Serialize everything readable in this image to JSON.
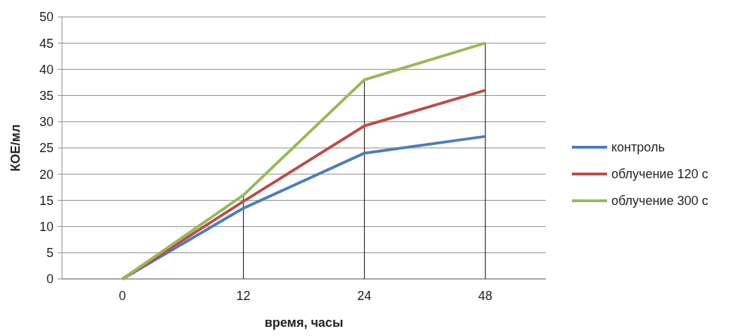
{
  "chart_data": {
    "type": "line",
    "xlabel": "время, часы",
    "ylabel": "КОЕ/мл",
    "categories": [
      "0",
      "12",
      "24",
      "48"
    ],
    "series": [
      {
        "name": "контроль",
        "color": "#4a7ebb",
        "values": [
          0,
          13.5,
          24,
          27.2
        ]
      },
      {
        "name": "облучение 120 с",
        "color": "#be4b48",
        "values": [
          0,
          14.8,
          29.2,
          36
        ]
      },
      {
        "name": "облучение 300 с",
        "color": "#98b954",
        "values": [
          0,
          16,
          38,
          45
        ]
      }
    ],
    "ylim": [
      0,
      50
    ],
    "yticks": [
      0,
      5,
      10,
      15,
      20,
      25,
      30,
      35,
      40,
      45,
      50
    ],
    "grid": "y",
    "legend": "right",
    "marker": "none",
    "line_style": "solid",
    "ref_lines": [
      {
        "axis": "x",
        "value": "12",
        "color": "#000000"
      },
      {
        "axis": "x",
        "value": "24",
        "color": "#000000"
      },
      {
        "axis": "x",
        "value": "48",
        "color": "#000000"
      }
    ]
  }
}
